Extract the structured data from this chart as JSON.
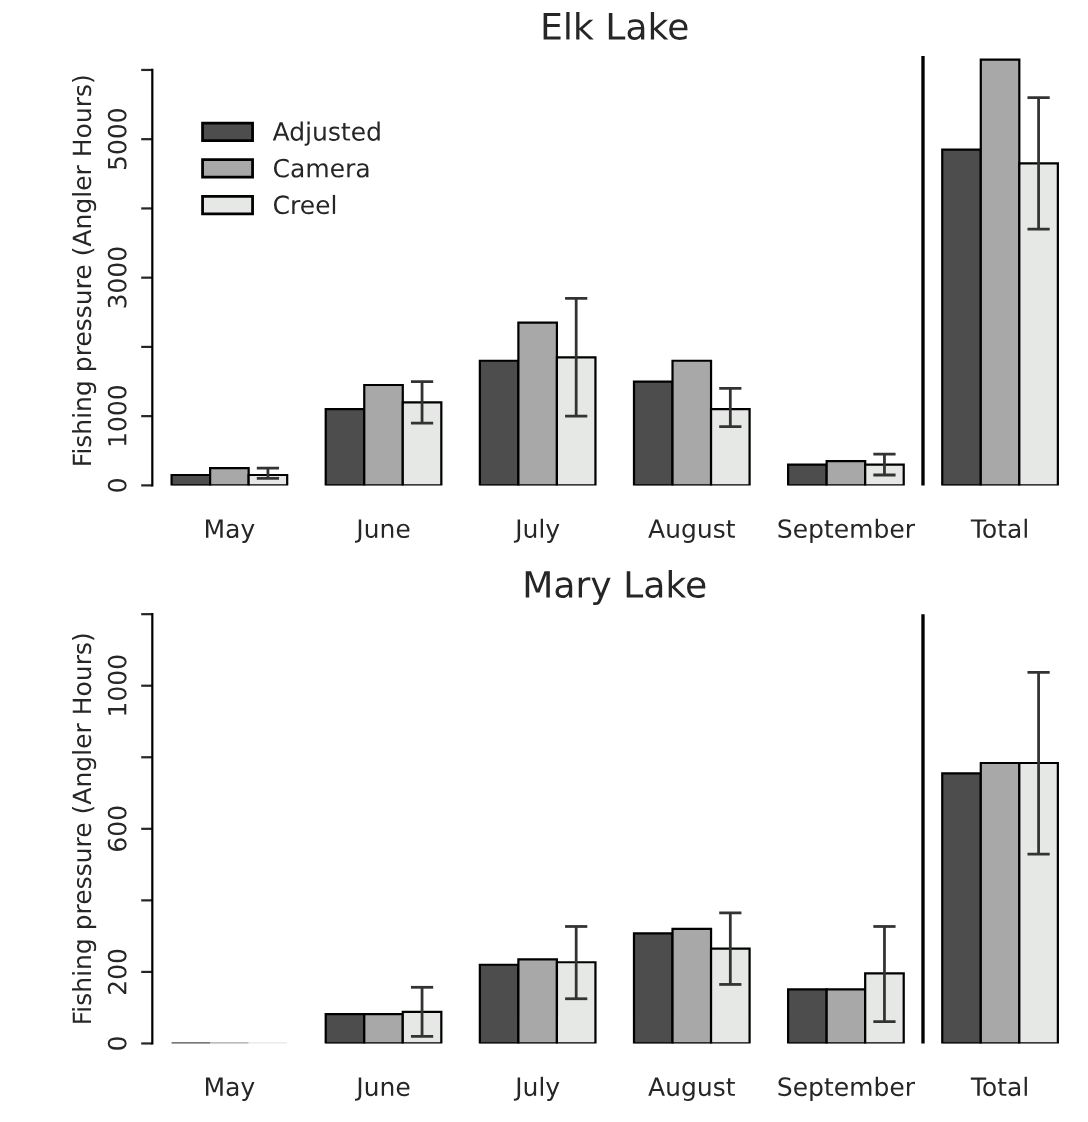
{
  "chart_data": [
    {
      "type": "bar",
      "title": "Elk Lake",
      "ylabel": "Fishing pressure (Angler Hours)",
      "categories": [
        "May",
        "June",
        "July",
        "August",
        "September",
        "Total"
      ],
      "series": [
        {
          "name": "Adjusted",
          "color": "#4d4d4d",
          "values": [
            150,
            1100,
            1800,
            1500,
            300,
            4850
          ]
        },
        {
          "name": "Camera",
          "color": "#a8a8a8",
          "values": [
            250,
            1450,
            2350,
            1800,
            350,
            6150
          ]
        },
        {
          "name": "Creel",
          "color": "#e6e8e6",
          "values": [
            150,
            1200,
            1850,
            1100,
            300,
            4650
          ],
          "errors": [
            [
              100,
              250
            ],
            [
              900,
              1500
            ],
            [
              1000,
              2700
            ],
            [
              850,
              1400
            ],
            [
              150,
              450
            ],
            [
              3700,
              5600
            ]
          ]
        }
      ],
      "ylim": [
        0,
        6200
      ],
      "yticks": [
        0,
        1000,
        {
          "value": 2000,
          "label": null
        },
        3000,
        {
          "value": 4000,
          "label": null
        },
        5000,
        {
          "value": 6000,
          "label": null
        }
      ],
      "legend": "top left",
      "grid": false
    },
    {
      "type": "bar",
      "title": "Mary Lake",
      "ylabel": "Fishing pressure (Angler Hours)",
      "categories": [
        "May",
        "June",
        "July",
        "August",
        "September",
        "Total"
      ],
      "series": [
        {
          "color": "#4d4d4d",
          "values": [
            0,
            82,
            220,
            308,
            151,
            755
          ]
        },
        {
          "color": "#a8a8a8",
          "values": [
            0,
            82,
            235,
            320,
            151,
            784
          ]
        },
        {
          "color": "#e6e8e6",
          "values": [
            0,
            88,
            227,
            265,
            196,
            784
          ],
          "errors": [
            null,
            [
              20,
              157
            ],
            [
              125,
              327
            ],
            [
              165,
              365
            ],
            [
              61,
              327
            ],
            [
              529,
              1037
            ]
          ]
        }
      ],
      "ylim": [
        0,
        1200
      ],
      "yticks": [
        0,
        200,
        {
          "value": 400,
          "label": null
        },
        600,
        {
          "value": 800,
          "label": null
        },
        1000,
        {
          "value": 1200,
          "label": null
        }
      ],
      "legend": false,
      "grid": false
    }
  ]
}
